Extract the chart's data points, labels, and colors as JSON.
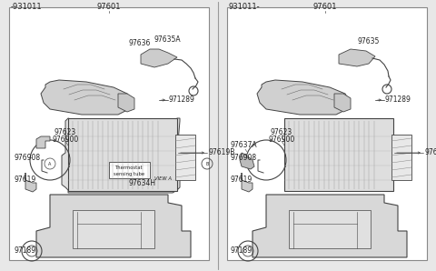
{
  "bg_color": "#e8e8e8",
  "panel_bg": "#ffffff",
  "line_color": "#444444",
  "text_color": "#222222",
  "comp_fill": "#d8d8d8",
  "left_header": "-931011",
  "right_header": "931011-",
  "part_num": "97601",
  "font_size": 5.5,
  "font_size_hdr": 6.0
}
